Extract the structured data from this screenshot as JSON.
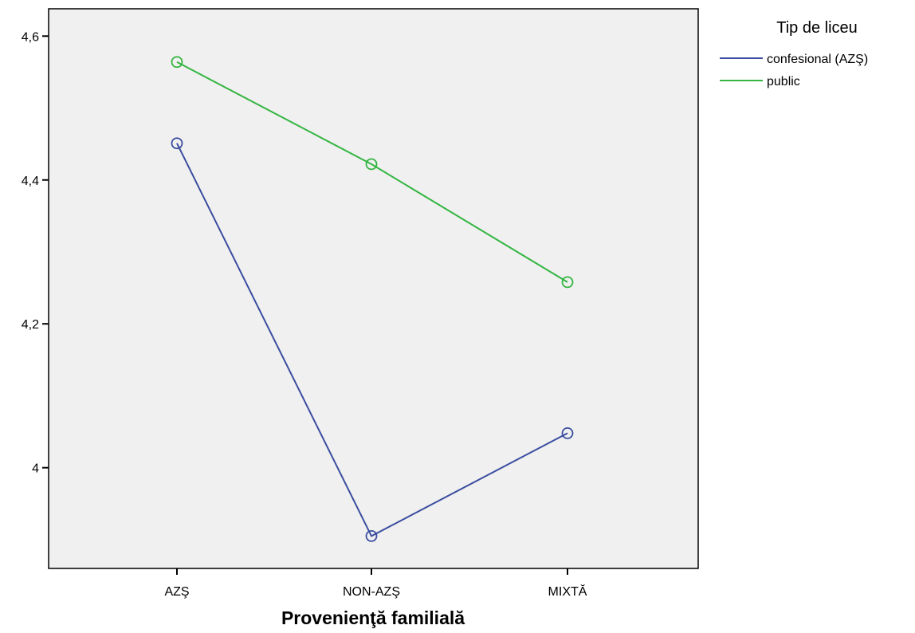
{
  "chart_data": {
    "type": "line",
    "title": "",
    "xlabel": "Provenienţă familială",
    "ylabel": "",
    "categories": [
      "AZŞ",
      "NON-AZŞ",
      "MIXTĂ"
    ],
    "yticks": [
      {
        "value": 4.0,
        "label": "4"
      },
      {
        "value": 4.2,
        "label": "4,2"
      },
      {
        "value": 4.4,
        "label": "4,4"
      },
      {
        "value": 4.6,
        "label": "4,6"
      }
    ],
    "ylim": [
      3.86,
      4.638
    ],
    "grid": false,
    "legend": {
      "title": "Tip de liceu",
      "placement": "right",
      "entries": [
        "confesional (AZŞ)",
        "public"
      ]
    },
    "series": [
      {
        "name": "confesional (AZŞ)",
        "color": "#3a4da0",
        "values": [
          4.451,
          3.905,
          4.048
        ]
      },
      {
        "name": "public",
        "color": "#33b540",
        "values": [
          4.564,
          4.422,
          4.258
        ]
      }
    ],
    "plot_background": "#f0f0f0",
    "marker": "open-circle"
  }
}
